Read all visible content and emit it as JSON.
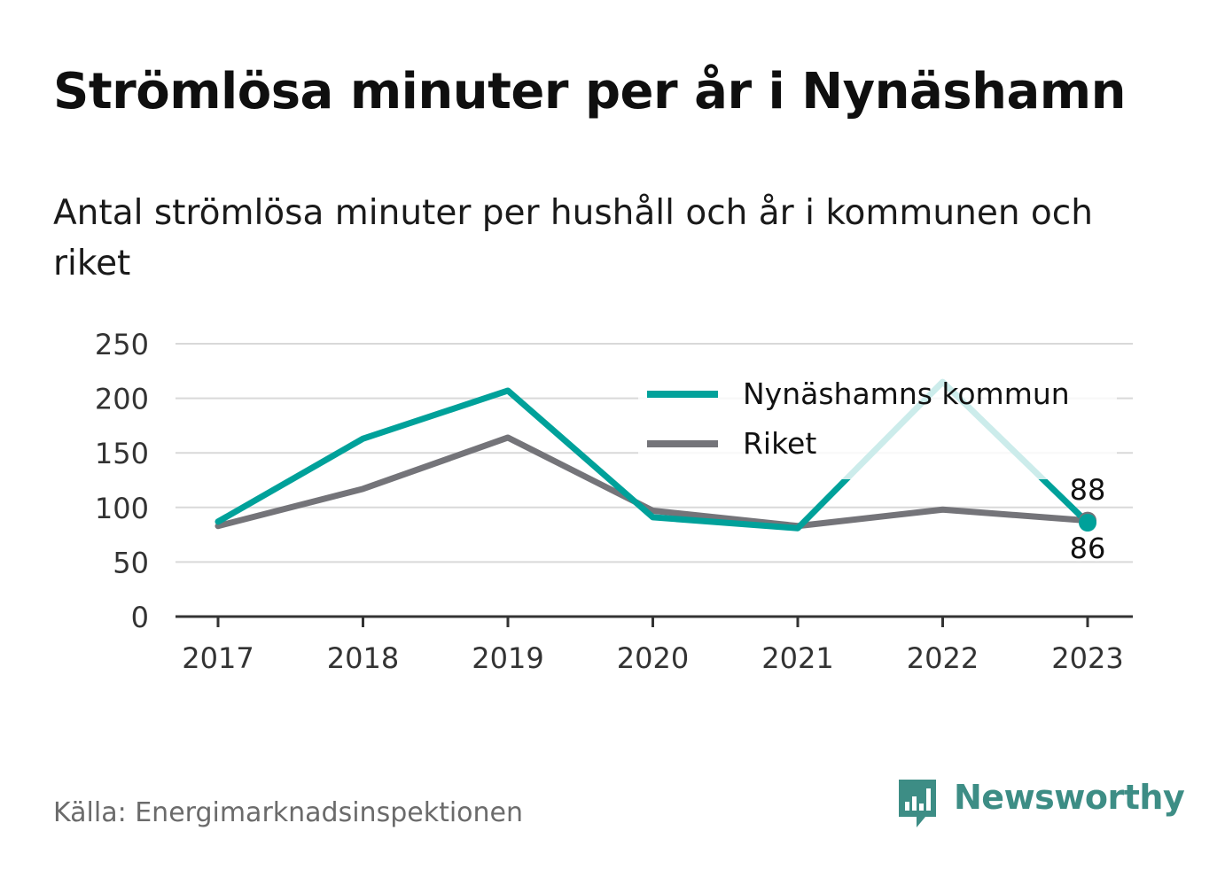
{
  "title": "Strömlösa minuter per år i Nynäshamn",
  "subtitle": "Antal strömlösa minuter per hushåll och år i kommunen och riket",
  "source": "Källa: Energimarknadsinspektionen",
  "brand": "Newsworthy",
  "colors": {
    "series_kommun": "#00a19a",
    "series_riket": "#747479",
    "grid": "#d9d9d9",
    "axis": "#333333",
    "brand": "#3d8d85"
  },
  "chart_data": {
    "type": "line",
    "categories": [
      "2017",
      "2018",
      "2019",
      "2020",
      "2021",
      "2022",
      "2023"
    ],
    "ylim": [
      0,
      250
    ],
    "yticks": [
      0,
      50,
      100,
      150,
      200,
      250
    ],
    "grid": true,
    "legend_position": "top-right",
    "series": [
      {
        "name": "Nynäshamns kommun",
        "values": [
          87,
          163,
          207,
          91,
          81,
          215,
          86
        ],
        "end_label": "86"
      },
      {
        "name": "Riket",
        "values": [
          83,
          117,
          164,
          97,
          83,
          98,
          88
        ],
        "end_label": "88"
      }
    ]
  }
}
